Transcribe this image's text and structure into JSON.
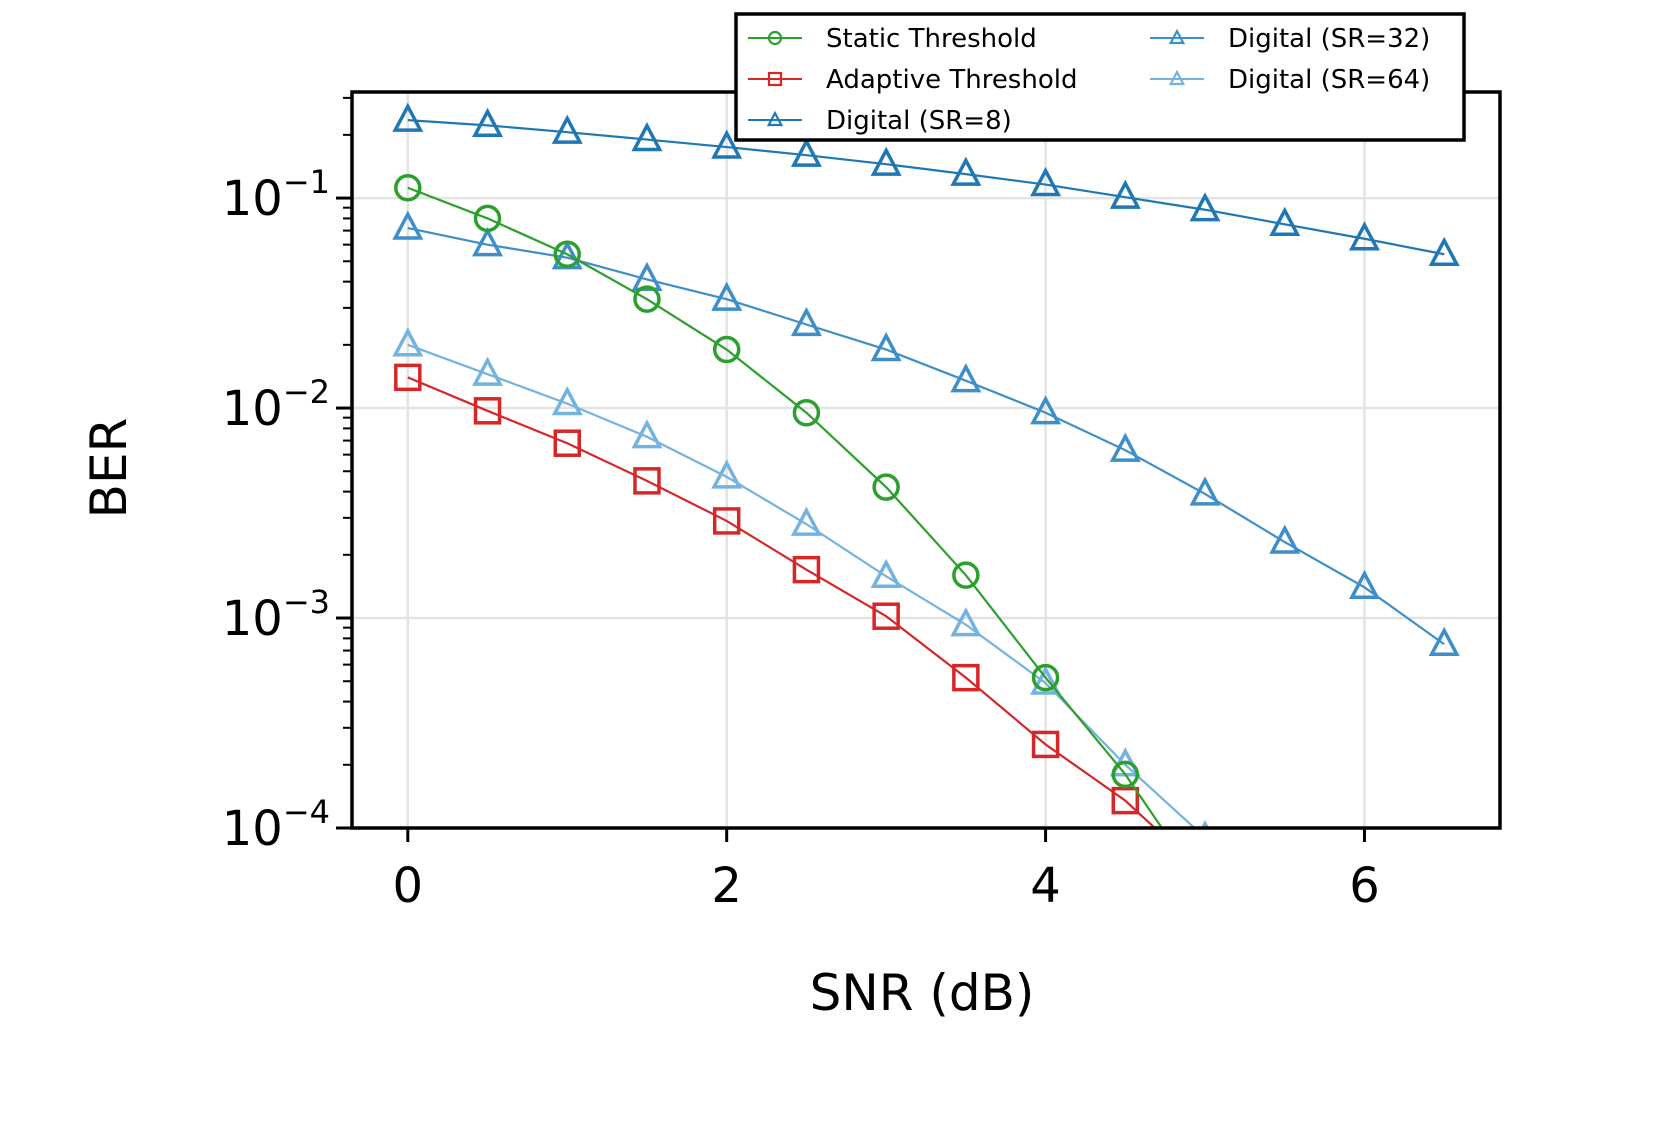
{
  "chart_data": {
    "type": "line",
    "title": "",
    "xlabel": "SNR (dB)",
    "ylabel": "BER",
    "xlim": [
      -0.35,
      6.85
    ],
    "ylim": [
      0.0001,
      0.32
    ],
    "yscale": "log",
    "grid": true,
    "legend_position": "top-right",
    "xticks": [
      {
        "value": 0,
        "label": "0"
      },
      {
        "value": 2,
        "label": "2"
      },
      {
        "value": 4,
        "label": "4"
      },
      {
        "value": 6,
        "label": "6"
      }
    ],
    "yticks": [
      {
        "value": 0.1,
        "base": "10",
        "exp": "−1"
      },
      {
        "value": 0.01,
        "base": "10",
        "exp": "−2"
      },
      {
        "value": 0.001,
        "base": "10",
        "exp": "−3"
      },
      {
        "value": 0.0001,
        "base": "10",
        "exp": "−4"
      }
    ],
    "series": [
      {
        "name": "Static Threshold",
        "color": "#2ca02c",
        "marker": "circle",
        "x": [
          0,
          0.5,
          1,
          1.5,
          2,
          2.5,
          3,
          3.5,
          4,
          4.5,
          5
        ],
        "y": [
          0.112,
          0.08,
          0.054,
          0.033,
          0.019,
          0.0095,
          0.0042,
          0.0016,
          0.00052,
          0.00018,
          5e-05
        ]
      },
      {
        "name": "Adaptive Threshold",
        "color": "#d62728",
        "marker": "square",
        "x": [
          0,
          0.5,
          1,
          1.5,
          2,
          2.5,
          3,
          3.5,
          4,
          4.5,
          5
        ],
        "y": [
          0.014,
          0.0097,
          0.0068,
          0.0045,
          0.0029,
          0.0017,
          0.00102,
          0.00052,
          0.00025,
          0.000135,
          6e-05
        ]
      },
      {
        "name": "Digital (SR=8)",
        "color": "#1f77b4",
        "marker": "triangle",
        "x": [
          0,
          0.5,
          1,
          1.5,
          2,
          2.5,
          3,
          3.5,
          4,
          4.5,
          5,
          5.5,
          6,
          6.5
        ],
        "y": [
          0.235,
          0.222,
          0.206,
          0.19,
          0.175,
          0.16,
          0.145,
          0.13,
          0.116,
          0.101,
          0.088,
          0.075,
          0.064,
          0.054
        ]
      },
      {
        "name": "Digital (SR=32)",
        "color": "#3d8ec9",
        "marker": "triangle",
        "x": [
          0,
          0.5,
          1,
          1.5,
          2,
          2.5,
          3,
          3.5,
          4,
          4.5,
          5,
          5.5,
          6,
          6.5
        ],
        "y": [
          0.072,
          0.06,
          0.052,
          0.041,
          0.033,
          0.025,
          0.019,
          0.0135,
          0.0095,
          0.0063,
          0.0039,
          0.0023,
          0.0014,
          0.00075
        ]
      },
      {
        "name": "Digital (SR=64)",
        "color": "#74b3e0",
        "marker": "triangle",
        "x": [
          0,
          0.5,
          1,
          1.5,
          2,
          2.5,
          3,
          3.5,
          4,
          4.5,
          5
        ],
        "y": [
          0.02,
          0.0145,
          0.0105,
          0.0073,
          0.0047,
          0.0028,
          0.00158,
          0.00093,
          0.00049,
          0.0002,
          9e-05
        ]
      }
    ]
  }
}
